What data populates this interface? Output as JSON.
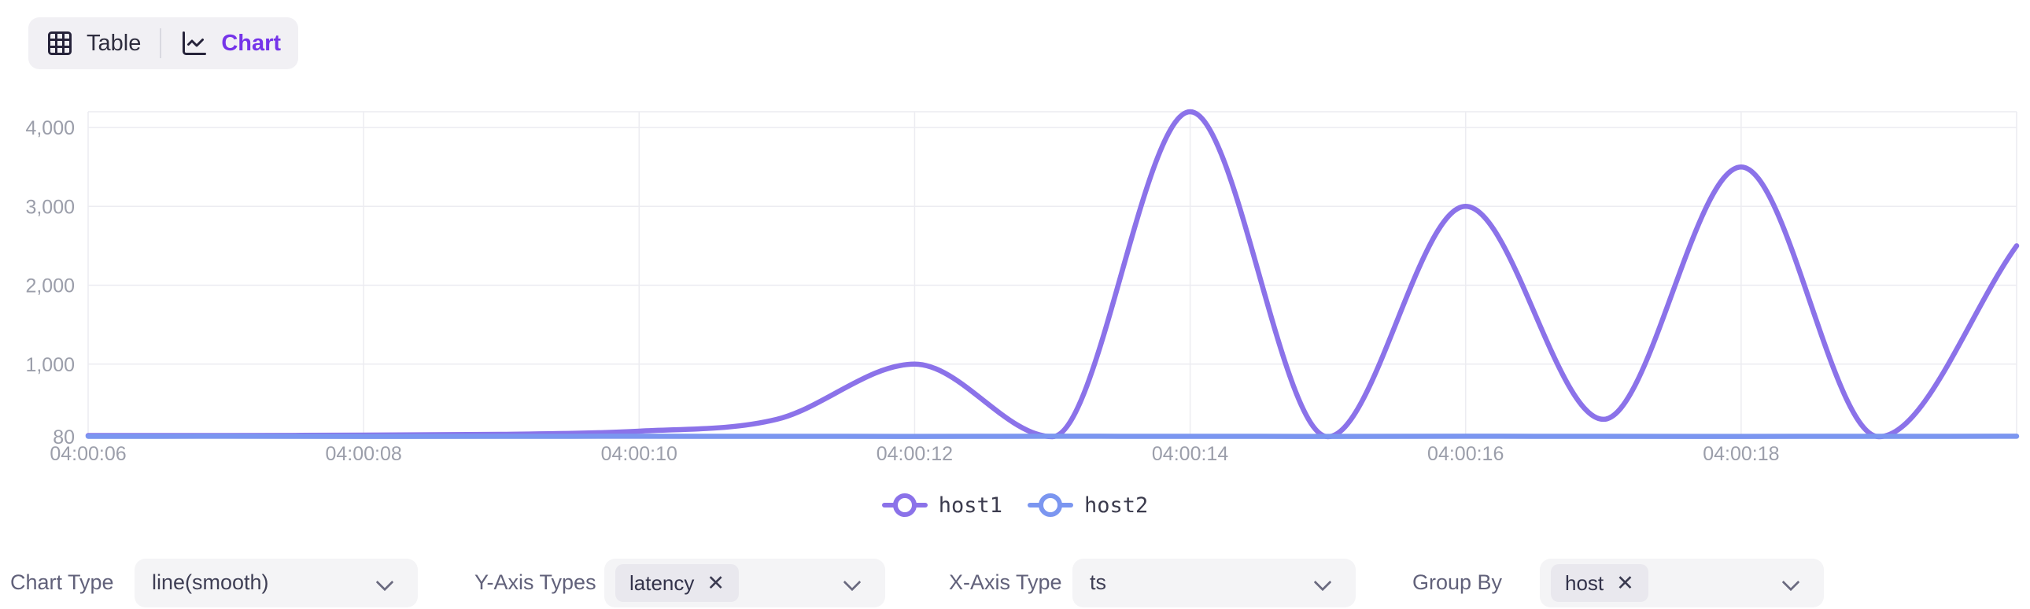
{
  "toggle": {
    "table_label": "Table",
    "chart_label": "Chart"
  },
  "chart_data": {
    "type": "line",
    "smooth": true,
    "title": "",
    "xlabel": "ts",
    "ylabel": "latency",
    "x_seconds": [
      6,
      7,
      8,
      9,
      10,
      11,
      12,
      13,
      14,
      15,
      16,
      17,
      18,
      19,
      20
    ],
    "x_tick_seconds": [
      6,
      8,
      10,
      12,
      14,
      16,
      18
    ],
    "x_tick_labels": [
      "04:00:06",
      "04:00:08",
      "04:00:10",
      "04:00:12",
      "04:00:14",
      "04:00:16",
      "04:00:18"
    ],
    "series": [
      {
        "name": "host1",
        "color": "#8B72E9",
        "values": [
          95,
          95,
          100,
          110,
          150,
          300,
          1000,
          80,
          4200,
          80,
          3000,
          300,
          3500,
          80,
          2500
        ]
      },
      {
        "name": "host2",
        "color": "#7B96F0",
        "values": [
          85,
          86,
          84,
          85,
          86,
          85,
          84,
          86,
          85,
          84,
          86,
          85,
          84,
          85,
          86
        ]
      }
    ],
    "y_ticks": [
      {
        "value": 80,
        "label": "80"
      },
      {
        "value": 1000,
        "label": "1,000"
      },
      {
        "value": 2000,
        "label": "2,000"
      },
      {
        "value": 3000,
        "label": "3,000"
      },
      {
        "value": 4000,
        "label": "4,000"
      }
    ],
    "ylim": [
      80,
      4200
    ],
    "grid": true,
    "legend_position": "bottom"
  },
  "controls": [
    {
      "label": "Chart Type",
      "value": "line(smooth)"
    },
    {
      "label": "Y-Axis Types",
      "tags": [
        "latency"
      ]
    },
    {
      "label": "X-Axis Type",
      "value": "ts"
    },
    {
      "label": "Group By",
      "tags": [
        "host"
      ]
    }
  ],
  "icons": {
    "remove_tag": "✕"
  },
  "colors": {
    "accent": "#7534E9",
    "series_host1": "#8B72E9",
    "series_host2": "#7B96F0",
    "grid_line": "#ECECF1",
    "axis_line": "#DBDBE3",
    "axis_label": "#9B9EAA"
  }
}
